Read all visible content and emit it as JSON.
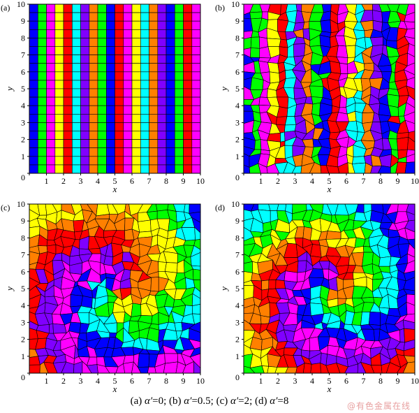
{
  "panels": [
    {
      "label": "(a)",
      "alpha": "0",
      "mode": "stripes",
      "jitter": 0.0,
      "swirl": 0.0
    },
    {
      "label": "(b)",
      "alpha": "0.5",
      "mode": "stripes",
      "jitter": 0.45,
      "swirl": 0.0
    },
    {
      "label": "(c)",
      "alpha": "2",
      "mode": "swirl",
      "jitter": 0.5,
      "swirl": 1.0
    },
    {
      "label": "(d)",
      "alpha": "8",
      "mode": "swirl",
      "jitter": 0.5,
      "swirl": 1.0
    }
  ],
  "axes": {
    "xlabel": "x",
    "ylabel": "y",
    "ticks": [
      "0",
      "1",
      "2",
      "3",
      "4",
      "5",
      "6",
      "7",
      "8",
      "9",
      "10"
    ],
    "xlim": [
      0,
      10
    ],
    "ylim": [
      0,
      10
    ]
  },
  "caption": {
    "parts": [
      {
        "text": "(a) ",
        "italic": false
      },
      {
        "text": "α′",
        "italic": true
      },
      {
        "text": "=0; (b) ",
        "italic": false
      },
      {
        "text": "α′",
        "italic": true
      },
      {
        "text": "=0.5; (c) ",
        "italic": false
      },
      {
        "text": "α′",
        "italic": true
      },
      {
        "text": "=2; (d) ",
        "italic": false
      },
      {
        "text": "α′",
        "italic": true
      },
      {
        "text": "=8",
        "italic": false
      }
    ]
  },
  "watermark": "@有色金属在线",
  "palette": [
    "#ff0000",
    "#ff8000",
    "#ffff00",
    "#00ff00",
    "#00ffff",
    "#0000ff",
    "#ff00ff",
    "#8000ff"
  ]
}
